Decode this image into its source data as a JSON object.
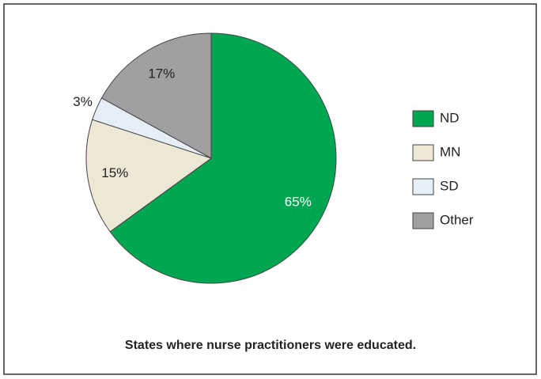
{
  "chart_data": {
    "type": "pie",
    "caption": "States where nurse practitioners were educated.",
    "categories": [
      "ND",
      "MN",
      "SD",
      "Other"
    ],
    "values": [
      65,
      15,
      3,
      17
    ],
    "value_labels": [
      "65%",
      "15%",
      "3%",
      "17%"
    ],
    "colors": [
      "#00a651",
      "#ede7d5",
      "#e6eef8",
      "#a0a0a2"
    ],
    "label_colors": [
      "#ffffff",
      "#222222",
      "#222222",
      "#222222"
    ]
  }
}
